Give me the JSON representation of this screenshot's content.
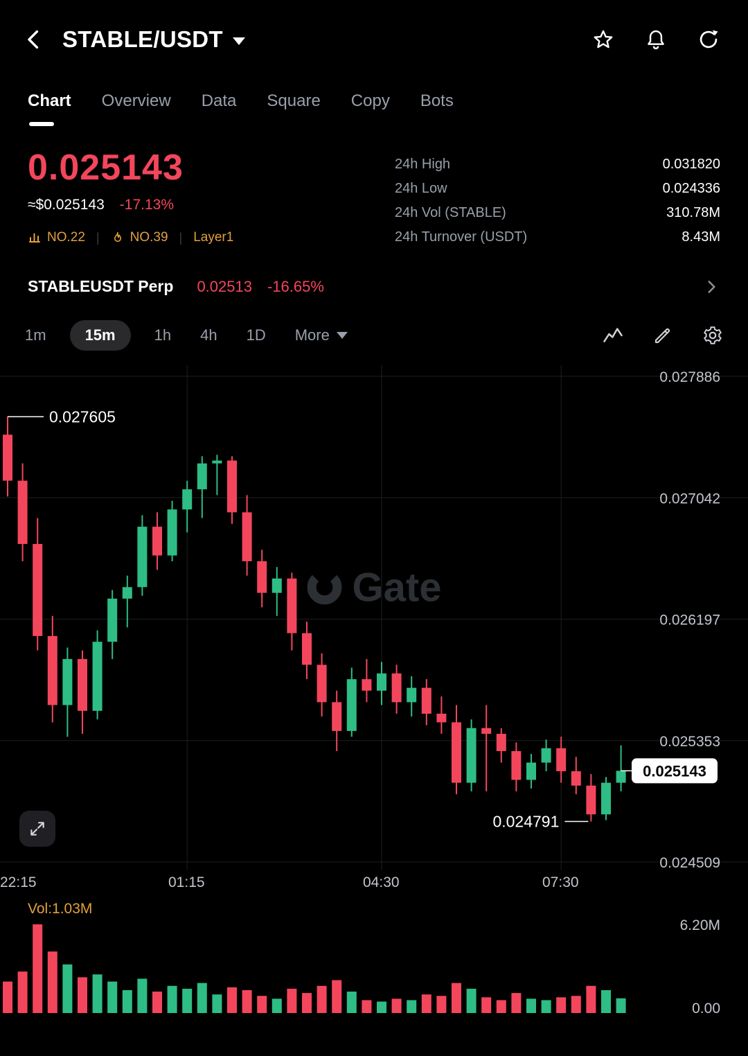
{
  "header": {
    "title": "STABLE/USDT"
  },
  "tabs": [
    {
      "label": "Chart",
      "active": true
    },
    {
      "label": "Overview"
    },
    {
      "label": "Data"
    },
    {
      "label": "Square"
    },
    {
      "label": "Copy"
    },
    {
      "label": "Bots"
    }
  ],
  "price": {
    "last": "0.025143",
    "approx": "≈$0.025143",
    "change": "-17.13%",
    "rank_mcap": "NO.22",
    "rank_hot": "NO.39",
    "tag": "Layer1"
  },
  "stats": [
    {
      "label": "24h  High",
      "value": "0.031820"
    },
    {
      "label": "24h  Low",
      "value": "0.024336"
    },
    {
      "label": "24h  Vol (STABLE)",
      "value": "310.78M"
    },
    {
      "label": "24h  Turnover (USDT)",
      "value": "8.43M"
    }
  ],
  "perp": {
    "name": "STABLEUSDT Perp",
    "price": "0.02513",
    "change": "-16.65%"
  },
  "timeframes": [
    {
      "label": "1m"
    },
    {
      "label": "15m",
      "active": true
    },
    {
      "label": "1h"
    },
    {
      "label": "4h"
    },
    {
      "label": "1D"
    }
  ],
  "more_label": "More",
  "watermark": "Gate",
  "colors": {
    "up": "#2ebd85",
    "down": "#f3465c",
    "orange": "#e2a13c",
    "axis_text": "#c2c6cd",
    "grid": "#1e1e20"
  },
  "chart_data": {
    "type": "candlestick",
    "interval": "15m",
    "start_time": "22:15",
    "interval_minutes": 15,
    "y_axis": {
      "max": 0.027886,
      "min": 0.024509,
      "labels": [
        "0.027886",
        "0.027042",
        "0.026197",
        "0.025353",
        "0.024509"
      ]
    },
    "x_labels": [
      {
        "index": 0,
        "text": "22:15"
      },
      {
        "index": 12,
        "text": "01:15"
      },
      {
        "index": 25,
        "text": "04:30"
      },
      {
        "index": 37,
        "text": "07:30"
      }
    ],
    "candles_format": [
      "open",
      "high",
      "low",
      "close",
      "volume_millions"
    ],
    "candles": [
      [
        0.02748,
        0.027605,
        0.02705,
        0.02716,
        2.2
      ],
      [
        0.02716,
        0.02728,
        0.0266,
        0.02672,
        2.9
      ],
      [
        0.02672,
        0.0269,
        0.02598,
        0.02608,
        6.2
      ],
      [
        0.02608,
        0.02622,
        0.02548,
        0.0256,
        4.3
      ],
      [
        0.0256,
        0.026,
        0.02538,
        0.02592,
        3.4
      ],
      [
        0.02592,
        0.02598,
        0.0254,
        0.02556,
        2.5
      ],
      [
        0.02556,
        0.02612,
        0.0255,
        0.02604,
        2.7
      ],
      [
        0.02604,
        0.0264,
        0.02592,
        0.02634,
        2.2
      ],
      [
        0.02634,
        0.0265,
        0.02614,
        0.02642,
        1.6
      ],
      [
        0.02642,
        0.02692,
        0.02636,
        0.02684,
        2.4
      ],
      [
        0.02684,
        0.02694,
        0.02654,
        0.02664,
        1.5
      ],
      [
        0.02664,
        0.02702,
        0.0266,
        0.02696,
        1.9
      ],
      [
        0.02696,
        0.02716,
        0.0268,
        0.0271,
        1.7
      ],
      [
        0.0271,
        0.02733,
        0.0269,
        0.02728,
        2.1
      ],
      [
        0.02728,
        0.02734,
        0.02706,
        0.0273,
        1.3
      ],
      [
        0.0273,
        0.02733,
        0.02686,
        0.02694,
        1.8
      ],
      [
        0.02694,
        0.02706,
        0.0265,
        0.0266,
        1.6
      ],
      [
        0.0266,
        0.02668,
        0.02628,
        0.02638,
        1.2
      ],
      [
        0.02638,
        0.02656,
        0.02622,
        0.02648,
        1.0
      ],
      [
        0.02648,
        0.02652,
        0.02598,
        0.0261,
        1.7
      ],
      [
        0.0261,
        0.02618,
        0.02578,
        0.02588,
        1.4
      ],
      [
        0.02588,
        0.02596,
        0.02552,
        0.02562,
        1.9
      ],
      [
        0.02562,
        0.0257,
        0.02528,
        0.02542,
        2.3
      ],
      [
        0.02542,
        0.02586,
        0.02538,
        0.02578,
        1.5
      ],
      [
        0.02578,
        0.02592,
        0.02562,
        0.0257,
        0.9
      ],
      [
        0.0257,
        0.0259,
        0.0256,
        0.02582,
        0.8
      ],
      [
        0.02582,
        0.02588,
        0.02554,
        0.02562,
        1.0
      ],
      [
        0.02562,
        0.0258,
        0.02552,
        0.02572,
        0.9
      ],
      [
        0.02572,
        0.02578,
        0.02546,
        0.02554,
        1.3
      ],
      [
        0.02554,
        0.02566,
        0.0254,
        0.02548,
        1.2
      ],
      [
        0.02548,
        0.0256,
        0.02498,
        0.02506,
        2.1
      ],
      [
        0.02506,
        0.0255,
        0.025,
        0.02544,
        1.7
      ],
      [
        0.02544,
        0.0256,
        0.025,
        0.0254,
        1.1
      ],
      [
        0.0254,
        0.02544,
        0.0252,
        0.02528,
        0.9
      ],
      [
        0.02528,
        0.02534,
        0.025,
        0.02508,
        1.4
      ],
      [
        0.02508,
        0.02526,
        0.02502,
        0.0252,
        1.0
      ],
      [
        0.0252,
        0.02536,
        0.02514,
        0.0253,
        0.9
      ],
      [
        0.0253,
        0.02538,
        0.02506,
        0.02514,
        1.1
      ],
      [
        0.02514,
        0.02524,
        0.02498,
        0.02504,
        1.2
      ],
      [
        0.02504,
        0.02512,
        0.024791,
        0.02484,
        1.9
      ],
      [
        0.02484,
        0.0251,
        0.0248,
        0.02506,
        1.6
      ],
      [
        0.02506,
        0.02532,
        0.025,
        0.025143,
        1.03
      ]
    ],
    "annotations": {
      "high": {
        "price": 0.027605,
        "label": "0.027605",
        "index": 0
      },
      "low": {
        "price": 0.024791,
        "label": "0.024791",
        "index": 39
      },
      "current": {
        "price": 0.025143,
        "label": "0.025143"
      }
    },
    "volume_axis": {
      "max": 6.2,
      "max_label": "6.20M",
      "min_label": "0.00",
      "current_label": "Vol:1.03M"
    }
  }
}
